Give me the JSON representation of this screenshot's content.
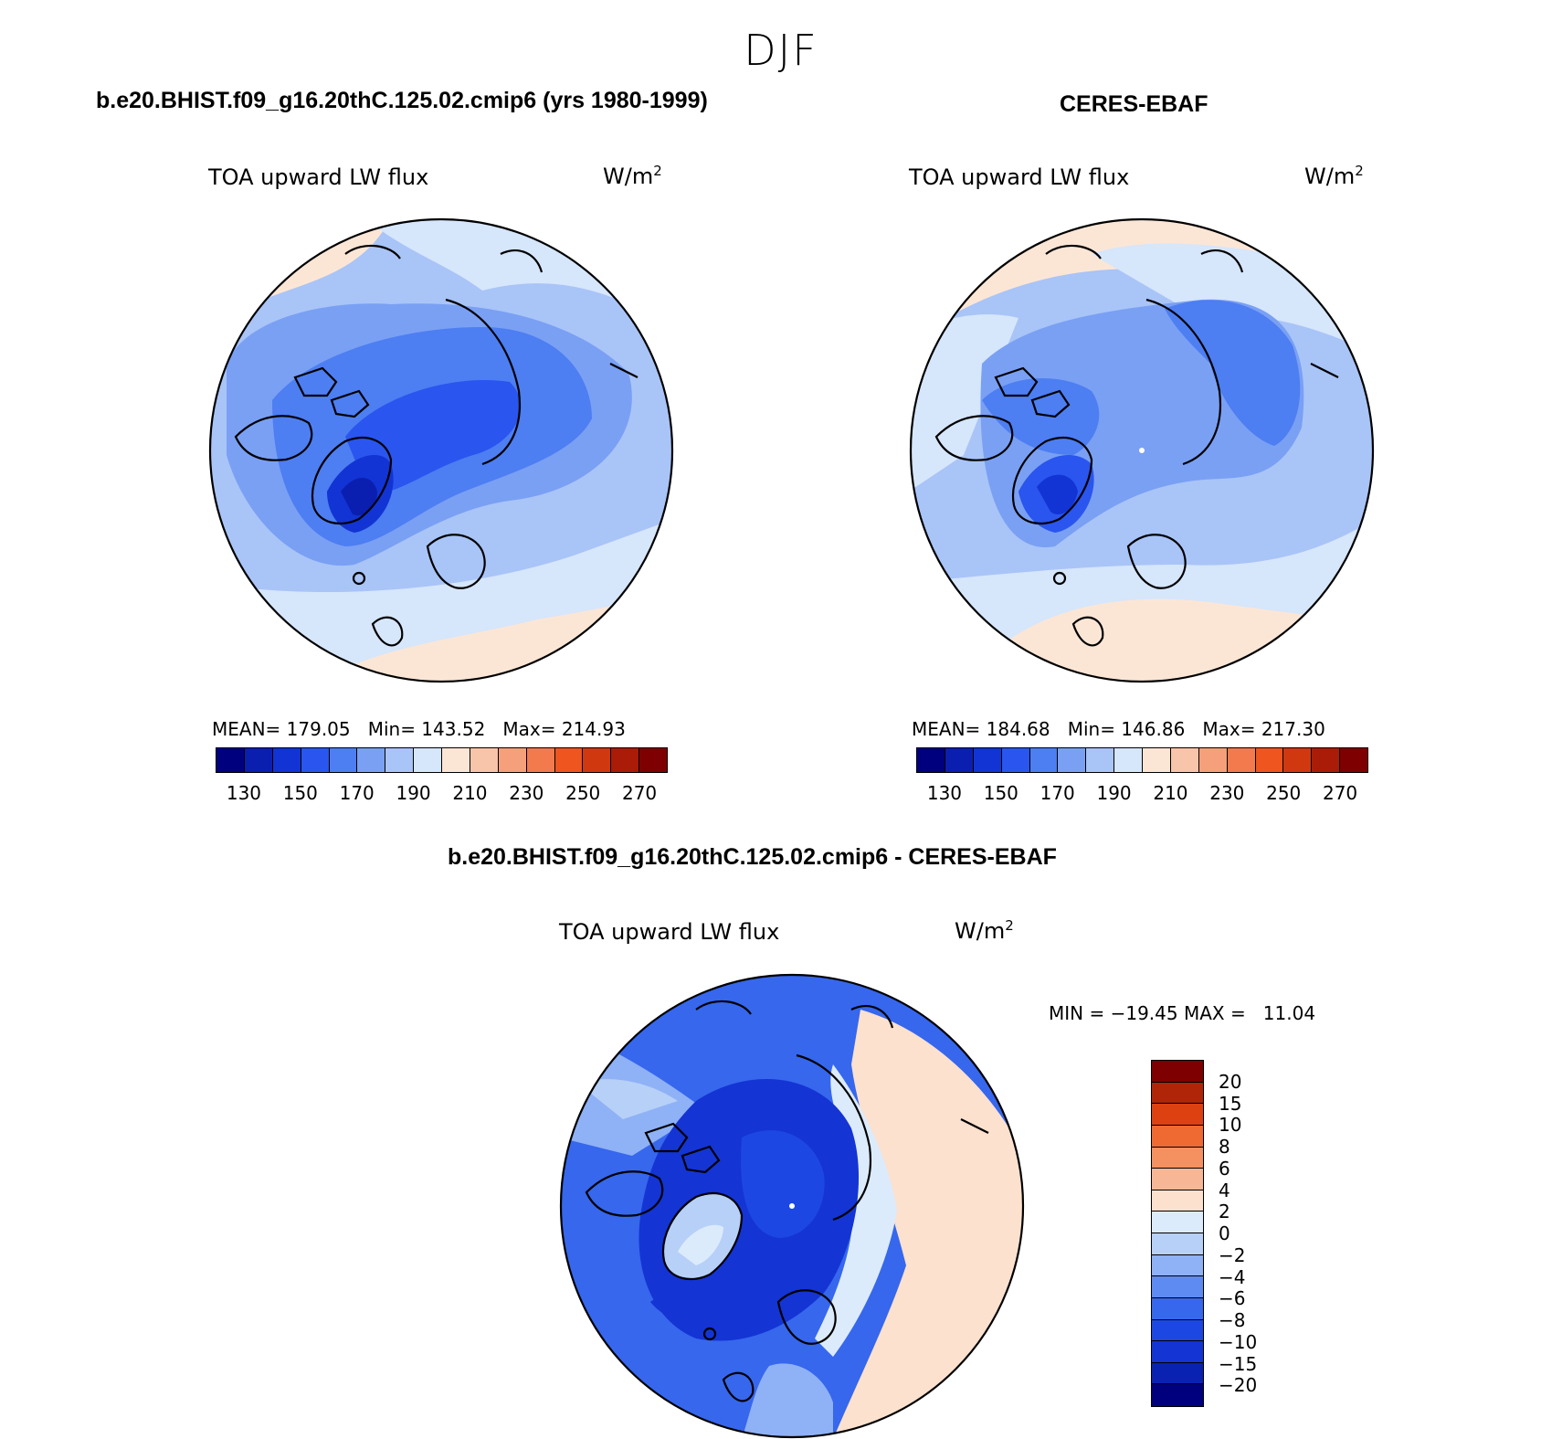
{
  "season": "DJF",
  "panels": [
    {
      "title": "b.e20.BHIST.f09_g16.20thC.125.02.cmip6 (yrs 1980-1999)",
      "variable": "TOA upward LW flux",
      "units_base": "W/m",
      "units_sup": "2",
      "stats": "MEAN= 179.05   Min= 143.52   Max= 214.93"
    },
    {
      "title": "CERES-EBAF",
      "variable": "TOA upward LW flux",
      "units_base": "W/m",
      "units_sup": "2",
      "stats": "MEAN= 184.68   Min= 146.86   Max= 217.30"
    },
    {
      "title": "b.e20.BHIST.f09_g16.20thC.125.02.cmip6 - CERES-EBAF",
      "variable": "TOA upward LW flux",
      "units_base": "W/m",
      "units_sup": "2",
      "stats": "MIN = −19.45 MAX =   11.04"
    }
  ],
  "abs_colorbar": {
    "colors": [
      "#00007f",
      "#0a1fb0",
      "#1234d4",
      "#2a55ee",
      "#4d7ef2",
      "#7aa0f4",
      "#a9c4f7",
      "#d6e6fb",
      "#fbe6d6",
      "#f8c4aa",
      "#f5a07a",
      "#f27a4d",
      "#ee551f",
      "#d03810",
      "#aa1c08",
      "#7f0000"
    ],
    "tick_labels": [
      "130",
      "150",
      "170",
      "190",
      "210",
      "230",
      "250",
      "270"
    ]
  },
  "diff_colorbar": {
    "colors": [
      "#7f0000",
      "#b02508",
      "#dd4111",
      "#ef6a33",
      "#f59060",
      "#f7b797",
      "#fbe1ce",
      "#dcebfc",
      "#b7d0f8",
      "#8fb1f5",
      "#5d8bf1",
      "#3667ed",
      "#1c47e3",
      "#1434d4",
      "#0a22b2",
      "#00007f"
    ],
    "tick_labels": [
      "20",
      "15",
      "10",
      "8",
      "6",
      "4",
      "2",
      "0",
      "−2",
      "−4",
      "−6",
      "−8",
      "−10",
      "−15",
      "−20"
    ]
  },
  "chart_data": [
    {
      "type": "heatmap",
      "title": "b.e20.BHIST.f09_g16.20thC.125.02.cmip6 (yrs 1980-1999)",
      "variable": "TOA upward LW flux",
      "units": "W/m2",
      "projection": "north polar stereographic",
      "mean": 179.05,
      "min": 143.52,
      "max": 214.93,
      "levels": [
        130,
        140,
        150,
        160,
        170,
        180,
        190,
        200,
        210,
        220,
        230,
        240,
        250,
        260,
        270
      ]
    },
    {
      "type": "heatmap",
      "title": "CERES-EBAF",
      "variable": "TOA upward LW flux",
      "units": "W/m2",
      "projection": "north polar stereographic",
      "mean": 184.68,
      "min": 146.86,
      "max": 217.3,
      "levels": [
        130,
        140,
        150,
        160,
        170,
        180,
        190,
        200,
        210,
        220,
        230,
        240,
        250,
        260,
        270
      ]
    },
    {
      "type": "heatmap",
      "title": "b.e20.BHIST.f09_g16.20thC.125.02.cmip6 - CERES-EBAF",
      "variable": "TOA upward LW flux",
      "units": "W/m2",
      "projection": "north polar stereographic",
      "min": -19.45,
      "max": 11.04,
      "levels": [
        -20,
        -15,
        -10,
        -8,
        -6,
        -4,
        -2,
        0,
        2,
        4,
        6,
        8,
        10,
        15,
        20
      ]
    }
  ]
}
